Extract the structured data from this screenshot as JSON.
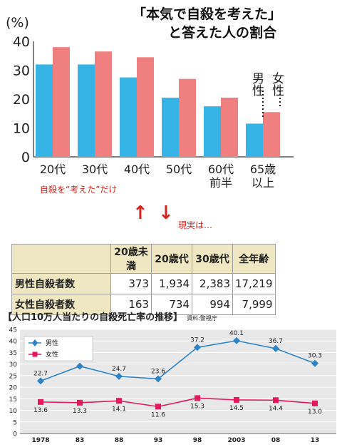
{
  "bar_chart": {
    "title_line1": "「本気で自殺を考えた」",
    "title_line2": "と答えた人の割合",
    "unit": "(%)",
    "legend_male": "男性",
    "legend_female": "女性",
    "note": "自殺を“考えた”だけ"
  },
  "transition": {
    "up_arrow": "↑",
    "down_arrow": "↓",
    "label": "現実は…"
  },
  "table": {
    "columns": [
      "20歳未満",
      "20歳代",
      "30歳代",
      "全年齢"
    ],
    "rows": [
      {
        "label": "男性自殺者数",
        "values": [
          "373",
          "1,934",
          "2,383",
          "17,219"
        ]
      },
      {
        "label": "女性自殺者数",
        "values": [
          "163",
          "734",
          "994",
          "7,999"
        ]
      }
    ]
  },
  "line_chart": {
    "title": "【人口10万人当たりの自殺死亡率の推移】",
    "source": "資料:警視庁"
  },
  "chart_data": [
    {
      "type": "bar",
      "title": "「本気で自殺を考えた」と答えた人の割合",
      "ylabel": "(%)",
      "ylim": [
        0,
        40
      ],
      "yticks": [
        0,
        10,
        20,
        30,
        40
      ],
      "categories": [
        "20代",
        "30代",
        "40代",
        "50代",
        "60代前半",
        "65歳以上"
      ],
      "category_labels": [
        [
          "20代"
        ],
        [
          "30代"
        ],
        [
          "40代"
        ],
        [
          "50代"
        ],
        [
          "60代",
          "前半"
        ],
        [
          "65歳",
          "以上"
        ]
      ],
      "series": [
        {
          "name": "男性",
          "color": "#36b4e5",
          "values": [
            32,
            32,
            27.5,
            20.5,
            17.5,
            11.5
          ]
        },
        {
          "name": "女性",
          "color": "#f08080",
          "values": [
            38,
            36.5,
            34.5,
            27,
            20.5,
            15.5
          ]
        }
      ],
      "grid": false
    },
    {
      "type": "line",
      "title": "【人口10万人当たりの自殺死亡率の推移】",
      "x": [
        "1978",
        "83",
        "88",
        "93",
        "98",
        "2003",
        "08",
        "13"
      ],
      "ylim": [
        0,
        45
      ],
      "yticks": [
        0,
        5,
        10,
        15,
        20,
        25,
        30,
        35,
        40,
        45
      ],
      "series": [
        {
          "name": "男性",
          "color": "#2e83c6",
          "marker": "diamond",
          "values": [
            22.7,
            29.1,
            24.7,
            23.6,
            37.2,
            40.1,
            36.7,
            30.3
          ]
        },
        {
          "name": "女性",
          "color": "#e5185b",
          "marker": "square",
          "values": [
            13.6,
            13.3,
            14.1,
            11.6,
            15.3,
            14.5,
            14.4,
            13.0
          ]
        }
      ],
      "grid": true,
      "legend_position": "top-left"
    }
  ]
}
